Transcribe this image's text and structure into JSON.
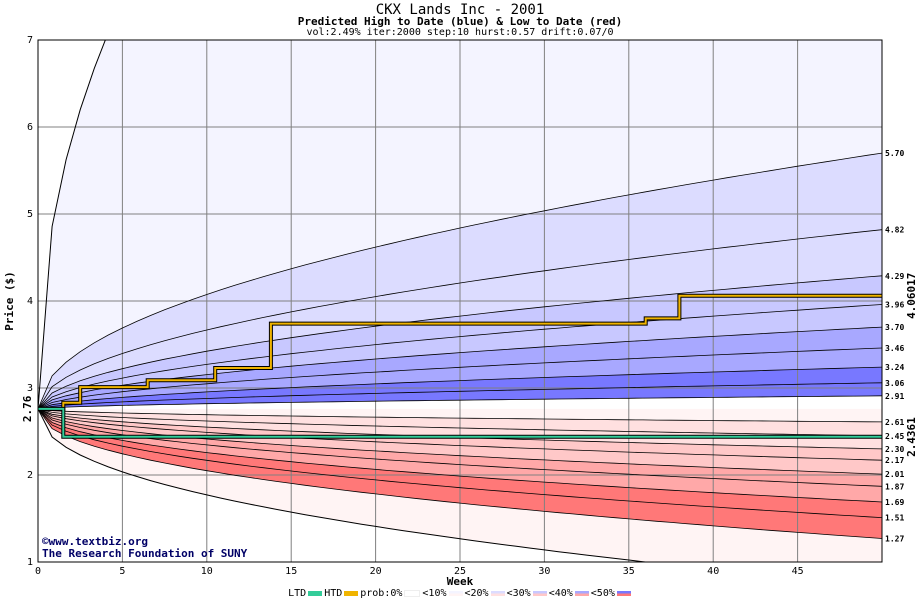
{
  "header": {
    "title": "CKX Lands Inc - 2001",
    "subtitle": "Predicted High to Date (blue) &  Low to Date (red)",
    "params": "vol:2.49% iter:2000 step:10 hurst:0.57 drift:0.07/0"
  },
  "credits": {
    "site": "www.textbiz.org",
    "org": "The Research Foundation of SUNY"
  },
  "legend": {
    "ltd": "LTD",
    "htd": "HTD",
    "prob": "prob:0%",
    "b10": "<10%",
    "b20": "<20%",
    "b30": "<30%",
    "b40": "<40%",
    "b50": "<50%"
  },
  "chart_data": {
    "type": "area",
    "title": "CKX Lands Inc - 2001",
    "subtitle": "Predicted High to Date (blue) &  Low to Date (red)",
    "xlabel": "Week",
    "ylabel": "Price ($)",
    "xlim": [
      0,
      50
    ],
    "ylim": [
      1,
      7
    ],
    "x_ticks": [
      0,
      5,
      10,
      15,
      20,
      25,
      30,
      35,
      40,
      45
    ],
    "y_ticks": [
      1,
      2,
      3,
      4,
      5,
      6,
      7
    ],
    "grid": true,
    "start_price": "2.76",
    "htd_final": "4.06017",
    "ltd_final": "2.4361",
    "high_percentiles": [
      "5.70",
      "4.82",
      "4.29",
      "3.96",
      "3.70",
      "3.46",
      "3.24",
      "3.06",
      "2.91"
    ],
    "low_percentiles": [
      "2.61",
      "2.45",
      "2.30",
      "2.17",
      "2.01",
      "1.87",
      "1.69",
      "1.51",
      "1.27"
    ],
    "series": [
      {
        "name": "HTD",
        "color": "#f0b400",
        "x": [
          0,
          1.5,
          1.5,
          2.5,
          2.5,
          6.5,
          6.5,
          10.5,
          10.5,
          13.8,
          13.8,
          36,
          36,
          38,
          38,
          50
        ],
        "values": [
          2.76,
          2.76,
          2.83,
          2.83,
          3.01,
          3.01,
          3.09,
          3.09,
          3.23,
          3.23,
          3.74,
          3.74,
          3.8,
          3.8,
          4.06,
          4.06
        ]
      },
      {
        "name": "LTD",
        "color": "#33cc99",
        "x": [
          0,
          1.5,
          1.5,
          50
        ],
        "values": [
          2.76,
          2.76,
          2.44,
          2.44
        ]
      }
    ],
    "colors": {
      "p0": "#ffffff",
      "high10": "#f4f4ff",
      "high20": "#dcdcff",
      "high30": "#c8c8ff",
      "high40": "#a8a8ff",
      "high50": "#7878ff",
      "low10": "#fff4f4",
      "low20": "#ffe0e0",
      "low30": "#ffc8c8",
      "low40": "#ffa8a8",
      "low50": "#ff7878"
    }
  }
}
